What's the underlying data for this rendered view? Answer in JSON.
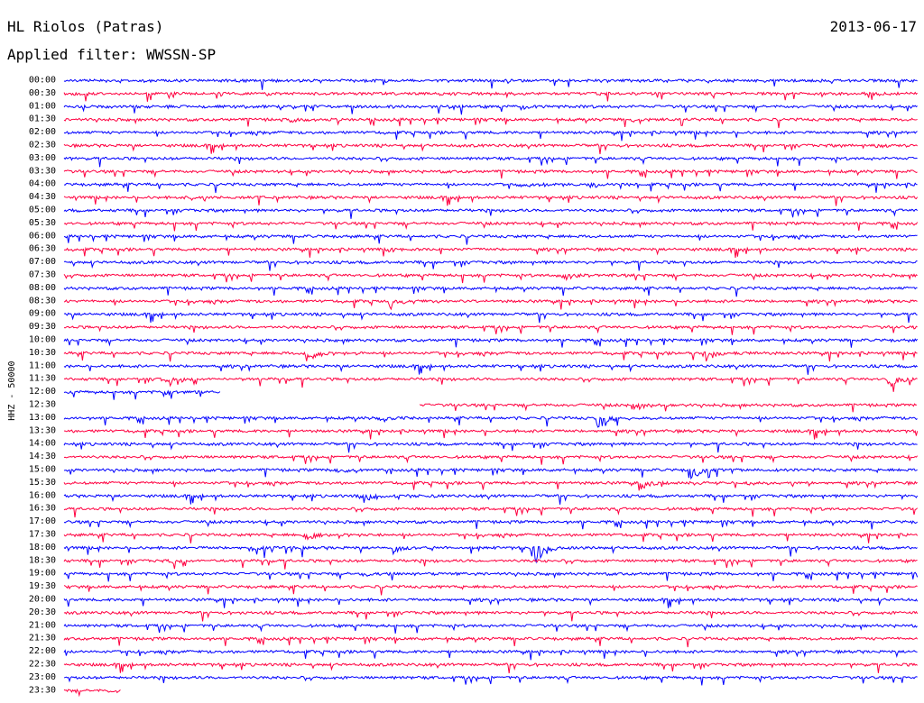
{
  "header": {
    "station": "HL Riolos (Patras)",
    "date": "2013-06-17",
    "filter_label": "Applied filter: WWSSN-SP"
  },
  "colors": {
    "even_trace": "#0000ff",
    "odd_trace": "#ff0040",
    "text": "#000000"
  },
  "chart_data": {
    "type": "line",
    "title": "HL Riolos (Patras)",
    "ylabel": "HHZ - 50000",
    "xlabel": "",
    "grid": false,
    "legend": "none",
    "row_labels": [
      "00:00",
      "00:30",
      "01:00",
      "01:30",
      "02:00",
      "02:30",
      "03:00",
      "03:30",
      "04:00",
      "04:30",
      "05:00",
      "05:30",
      "06:00",
      "06:30",
      "07:00",
      "07:30",
      "08:00",
      "08:30",
      "09:00",
      "09:30",
      "10:00",
      "10:30",
      "11:00",
      "11:30",
      "12:00",
      "12:30",
      "13:00",
      "13:30",
      "14:00",
      "14:30",
      "15:00",
      "15:30",
      "16:00",
      "16:30",
      "17:00",
      "17:30",
      "18:00",
      "18:30",
      "19:00",
      "19:30",
      "20:00",
      "20:30",
      "21:00",
      "21:30",
      "22:00",
      "22:30",
      "23:00",
      "23:30"
    ],
    "row_minutes": 30,
    "data_gap": {
      "from": "12:00",
      "from_minute": 5.5,
      "to": "12:30",
      "to_minute": 12.5
    },
    "traces_end": {
      "row": "23:30",
      "minute": 2
    },
    "events": [
      {
        "row": "00:30",
        "minute": 28.5,
        "amp": 0.35
      },
      {
        "row": "01:00",
        "minute": 16.0,
        "amp": 0.5
      },
      {
        "row": "01:30",
        "minute": 8.0,
        "amp": 0.45
      },
      {
        "row": "01:30",
        "minute": 20.0,
        "amp": 0.4
      },
      {
        "row": "02:30",
        "minute": 28.5,
        "amp": 0.35
      },
      {
        "row": "04:00",
        "minute": 16.0,
        "amp": 0.6
      },
      {
        "row": "04:00",
        "minute": 18.5,
        "amp": 0.55
      },
      {
        "row": "04:30",
        "minute": 4.5,
        "amp": 0.5
      },
      {
        "row": "06:30",
        "minute": 11.5,
        "amp": 0.55
      },
      {
        "row": "07:30",
        "minute": 17.5,
        "amp": 1.4
      },
      {
        "row": "08:30",
        "minute": 11.5,
        "amp": 1.8
      },
      {
        "row": "10:30",
        "minute": 8.5,
        "amp": 2.2
      },
      {
        "row": "10:30",
        "minute": 22.5,
        "amp": 2.0
      },
      {
        "row": "11:30",
        "minute": 3.5,
        "amp": 2.3
      },
      {
        "row": "11:30",
        "minute": 29.0,
        "amp": 2.0
      },
      {
        "row": "12:00",
        "minute": 3.5,
        "amp": 0.6
      },
      {
        "row": "12:30",
        "minute": 20.0,
        "amp": 1.6
      },
      {
        "row": "13:00",
        "minute": 11.0,
        "amp": 0.45
      },
      {
        "row": "13:00",
        "minute": 18.8,
        "amp": 3.5
      },
      {
        "row": "15:00",
        "minute": 9.6,
        "amp": 0.8
      },
      {
        "row": "15:00",
        "minute": 22.0,
        "amp": 3.0
      },
      {
        "row": "15:30",
        "minute": 20.3,
        "amp": 1.6
      },
      {
        "row": "15:30",
        "minute": 24.0,
        "amp": 0.7
      },
      {
        "row": "16:00",
        "minute": 10.5,
        "amp": 1.4
      },
      {
        "row": "17:30",
        "minute": 8.5,
        "amp": 1.0
      },
      {
        "row": "18:00",
        "minute": 6.5,
        "amp": 0.5
      },
      {
        "row": "18:00",
        "minute": 11.5,
        "amp": 1.2
      },
      {
        "row": "18:00",
        "minute": 16.5,
        "amp": 3.8
      },
      {
        "row": "18:30",
        "minute": 3.8,
        "amp": 0.4
      },
      {
        "row": "19:00",
        "minute": 10.5,
        "amp": 0.4
      },
      {
        "row": "23:30",
        "minute": 1.5,
        "amp": 0.35
      }
    ]
  }
}
